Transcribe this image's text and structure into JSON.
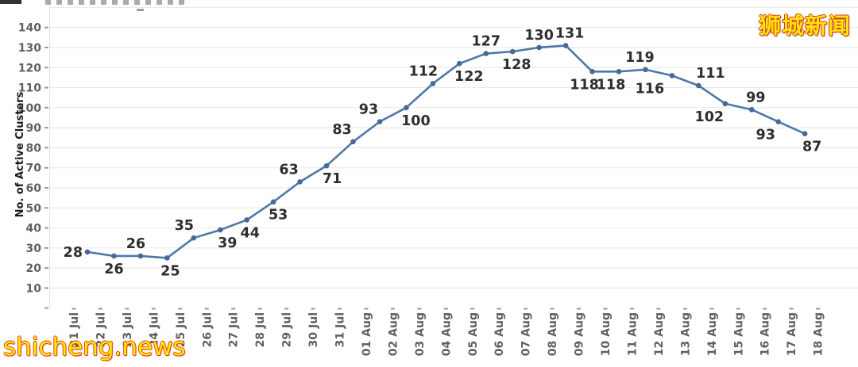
{
  "page": {
    "watermark_bottom": "shicheng.news",
    "watermark_top": "狮城新闻"
  },
  "colors": {
    "line": "#4e78a8",
    "marker": "#46699a",
    "value_label": "#2e2e2e",
    "tick_label": "#5f5f5f",
    "axis_title": "#1a1a1a",
    "gridline": "#ebebe7",
    "axis_line": "#e2e2de",
    "tick_mark": "#9b9b9b",
    "watermark_fill": "#ffe608",
    "watermark_outline": "#e8401c"
  },
  "chart_data": {
    "type": "line",
    "title": "",
    "xlabel": "",
    "ylabel": "No. of Active Clusters",
    "ylim": [
      0,
      150
    ],
    "y_ticks": [
      10,
      20,
      30,
      40,
      50,
      60,
      70,
      80,
      90,
      100,
      110,
      120,
      130,
      140
    ],
    "grid": true,
    "legend_position": "none",
    "x_axis_labels": [
      "21 Jul",
      "22 Jul",
      "23 Jul",
      "24 Jul",
      "25 Jul",
      "26 Jul",
      "27 Jul",
      "28 Jul",
      "29 Jul",
      "30 Jul",
      "31 Jul",
      "01 Aug",
      "02 Aug",
      "03 Aug",
      "04 Aug",
      "05 Aug",
      "06 Aug",
      "07 Aug",
      "08 Aug",
      "09 Aug",
      "10 Aug",
      "11 Aug",
      "12 Aug",
      "13 Aug",
      "14 Aug",
      "15 Aug",
      "16 Aug",
      "17 Aug",
      "18 Aug"
    ],
    "series": [
      {
        "name": "Active Clusters",
        "points": [
          {
            "date": "21 Jul",
            "value": 28,
            "label_pos": "left",
            "dx": 0
          },
          {
            "date": "22 Jul",
            "value": 26,
            "label_pos": "below",
            "dx": 0
          },
          {
            "date": "23 Jul",
            "value": 26,
            "label_pos": "above",
            "dx": -6
          },
          {
            "date": "24 Jul",
            "value": 25,
            "label_pos": "below",
            "dx": 4
          },
          {
            "date": "25 Jul",
            "value": 35,
            "label_pos": "above",
            "dx": -12
          },
          {
            "date": "26 Jul",
            "value": 39,
            "label_pos": "below",
            "dx": 9
          },
          {
            "date": "27 Jul",
            "value": 44,
            "label_pos": "below",
            "dx": 4
          },
          {
            "date": "28 Jul",
            "value": 53,
            "label_pos": "below",
            "dx": 6
          },
          {
            "date": "29 Jul",
            "value": 63,
            "label_pos": "above",
            "dx": -14
          },
          {
            "date": "30 Jul",
            "value": 71,
            "label_pos": "below",
            "dx": 7
          },
          {
            "date": "31 Jul",
            "value": 83,
            "label_pos": "above",
            "dx": -14
          },
          {
            "date": "01 Aug",
            "value": 93,
            "label_pos": "above",
            "dx": -14
          },
          {
            "date": "02 Aug",
            "value": 100,
            "label_pos": "below",
            "dx": 12
          },
          {
            "date": "03 Aug",
            "value": 112,
            "label_pos": "above",
            "dx": -12
          },
          {
            "date": "04 Aug",
            "value": 122,
            "label_pos": "below",
            "dx": 12
          },
          {
            "date": "05 Aug",
            "value": 127,
            "label_pos": "above",
            "dx": 0
          },
          {
            "date": "06 Aug",
            "value": 128,
            "label_pos": "below",
            "dx": 5
          },
          {
            "date": "07 Aug",
            "value": 130,
            "label_pos": "above",
            "dx": 0
          },
          {
            "date": "08 Aug",
            "value": 131,
            "label_pos": "above",
            "dx": 5
          },
          {
            "date": "09 Aug",
            "value": 118,
            "label_pos": "below",
            "dx": -10
          },
          {
            "date": "10 Aug",
            "value": 118,
            "label_pos": "below",
            "dx": -10
          },
          {
            "date": "11 Aug",
            "value": 119,
            "label_pos": "above",
            "dx": -7
          },
          {
            "date": "12 Aug",
            "value": 116,
            "label_pos": "below",
            "dx": -28
          },
          {
            "date": "13 Aug",
            "value": 111,
            "label_pos": "above",
            "dx": 15
          },
          {
            "date": "14 Aug",
            "value": 102,
            "label_pos": "below",
            "dx": -20
          },
          {
            "date": "15 Aug",
            "value": 99,
            "label_pos": "above",
            "dx": 5
          },
          {
            "date": "16 Aug",
            "value": 93,
            "label_pos": "below",
            "dx": -16
          },
          {
            "date": "17 Aug",
            "value": 87,
            "label_pos": "below",
            "dx": 9
          }
        ]
      }
    ]
  }
}
